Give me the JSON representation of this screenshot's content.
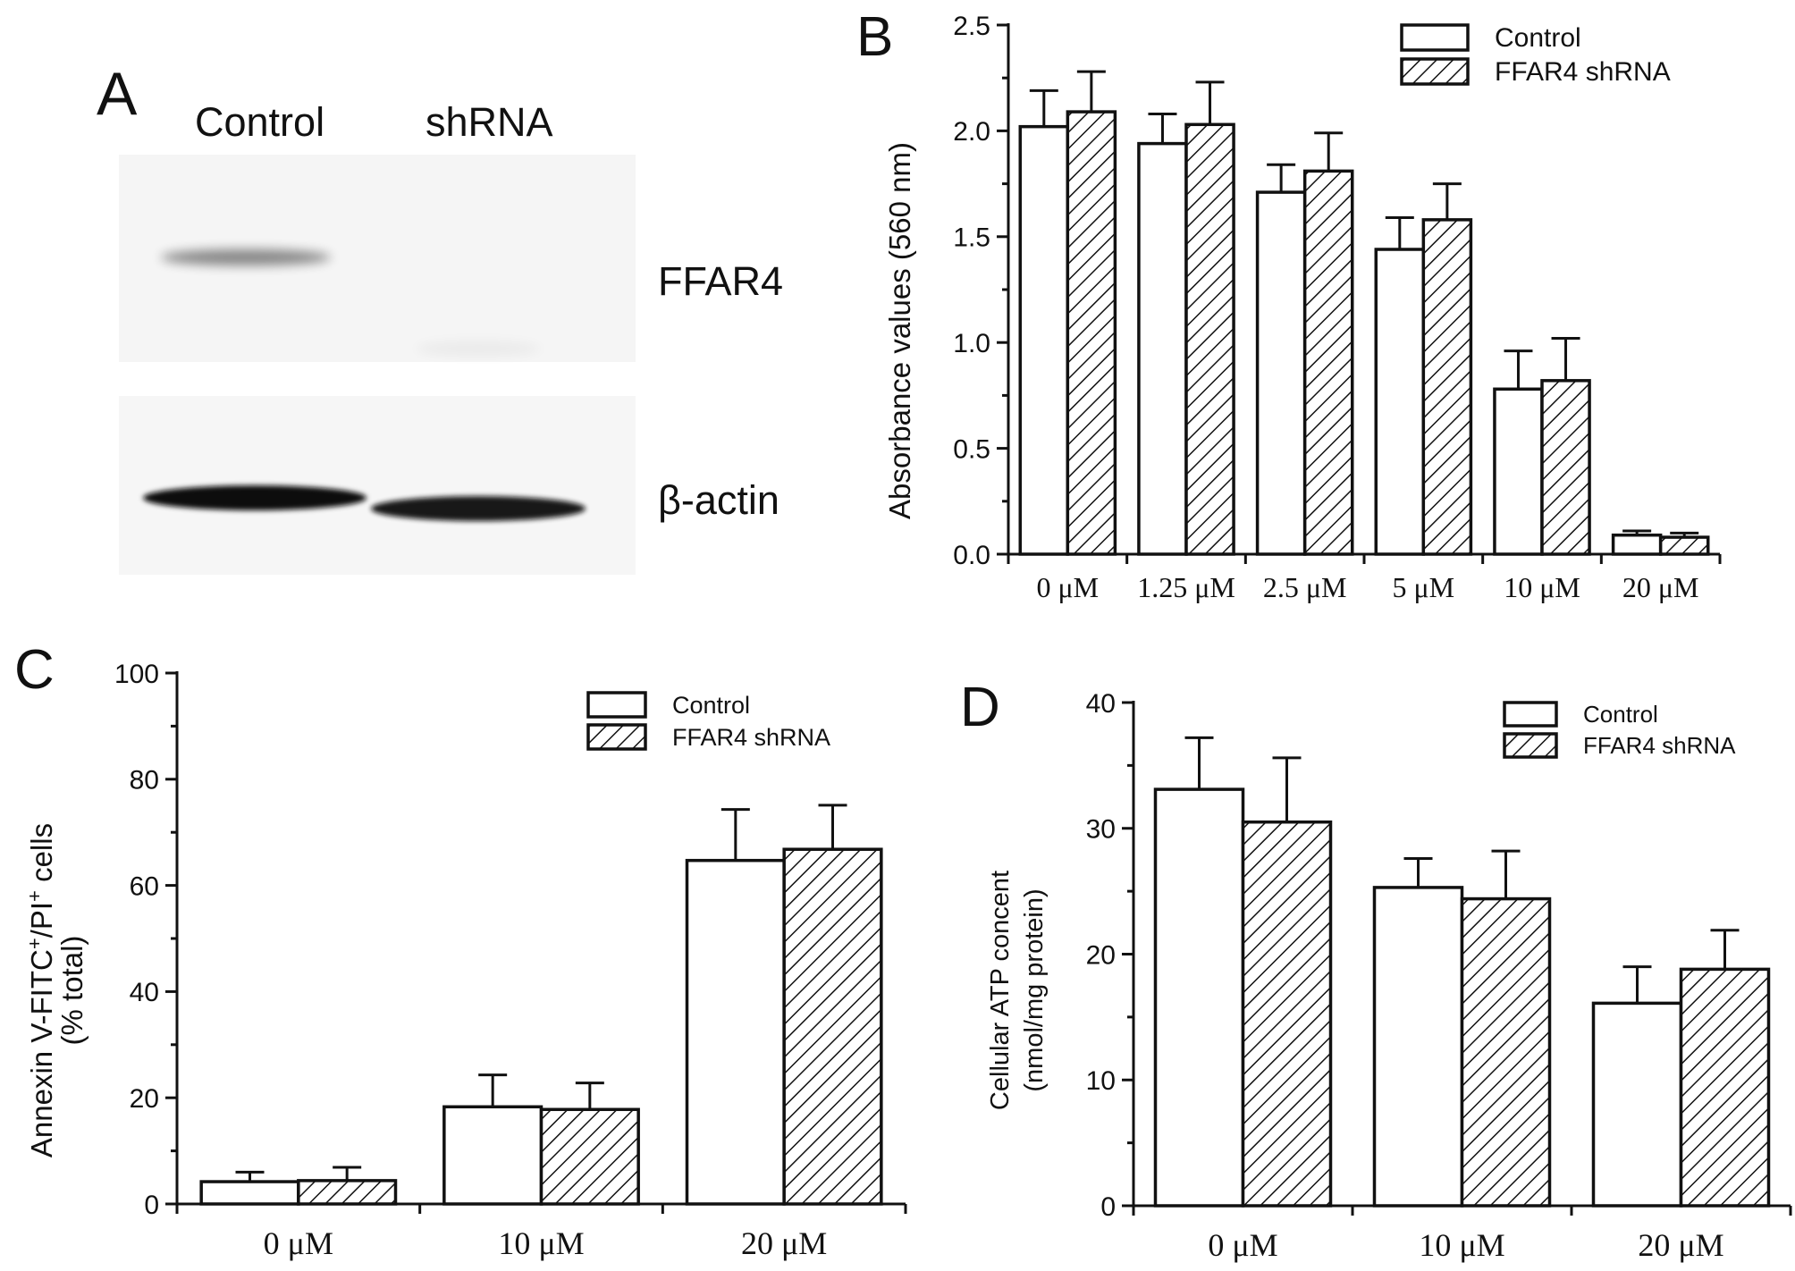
{
  "panel_labels": [
    "A",
    "B",
    "C",
    "D"
  ],
  "blot": {
    "lanes": [
      "Control",
      "shRNA"
    ],
    "bands": [
      "FFAR4",
      "β-actin"
    ],
    "ffar4_levels": [
      0.45,
      0.04
    ],
    "actin_levels": [
      1.0,
      0.95
    ]
  },
  "colors": {
    "bar_fill": "#ffffff",
    "stroke": "#111111",
    "hatch": "#111111"
  },
  "chart_data": [
    {
      "panel": "B",
      "type": "bar",
      "categories": [
        "0 μM",
        "1.25 μM",
        "2.5 μM",
        "5 μM",
        "10 μM",
        "20 μM"
      ],
      "ylabel": "Absorbance values (560 nm)",
      "xlabel": "",
      "ylim": [
        0,
        2.5
      ],
      "yticks": [
        "0.0",
        "0.5",
        "1.0",
        "1.5",
        "2.0",
        "2.5"
      ],
      "legend_position": "top-right",
      "series": [
        {
          "name": "Control",
          "pattern": "open",
          "values": [
            2.02,
            1.94,
            1.71,
            1.44,
            0.78,
            0.09
          ],
          "errors": [
            0.17,
            0.14,
            0.13,
            0.15,
            0.18,
            0.02
          ]
        },
        {
          "name": "FFAR4 shRNA",
          "pattern": "hatched",
          "values": [
            2.09,
            2.03,
            1.81,
            1.58,
            0.82,
            0.08
          ],
          "errors": [
            0.19,
            0.2,
            0.18,
            0.17,
            0.2,
            0.02
          ]
        }
      ]
    },
    {
      "panel": "C",
      "type": "bar",
      "categories": [
        "0 μM",
        "10 μM",
        "20 μM"
      ],
      "ylabel_parts": [
        "Annexin V-FITC",
        "+",
        "/PI",
        "+",
        " cells"
      ],
      "ylabel2": "(% total)",
      "xlabel": "",
      "ylim": [
        0,
        100
      ],
      "yticks": [
        "0",
        "20",
        "40",
        "60",
        "80",
        "100"
      ],
      "legend_position": "top-right",
      "series": [
        {
          "name": "Control",
          "pattern": "open",
          "values": [
            4.2,
            18.3,
            64.7
          ],
          "errors": [
            1.8,
            6.0,
            9.6
          ]
        },
        {
          "name": "FFAR4 shRNA",
          "pattern": "hatched",
          "values": [
            4.4,
            17.8,
            66.8
          ],
          "errors": [
            2.5,
            5.0,
            8.3
          ]
        }
      ]
    },
    {
      "panel": "D",
      "type": "bar",
      "categories": [
        "0 μM",
        "10 μM",
        "20 μM"
      ],
      "ylabel": "Cellular ATP concent",
      "ylabel2": "(nmol/mg protein)",
      "xlabel": "",
      "ylim": [
        0,
        40
      ],
      "yticks": [
        "0",
        "10",
        "20",
        "30",
        "40"
      ],
      "legend_position": "top-right",
      "series": [
        {
          "name": "Control",
          "pattern": "open",
          "values": [
            33.1,
            25.3,
            16.1
          ],
          "errors": [
            4.1,
            2.3,
            2.9
          ]
        },
        {
          "name": "FFAR4 shRNA",
          "pattern": "hatched",
          "values": [
            30.5,
            24.4,
            18.8
          ],
          "errors": [
            5.1,
            3.8,
            3.1
          ]
        }
      ]
    }
  ]
}
